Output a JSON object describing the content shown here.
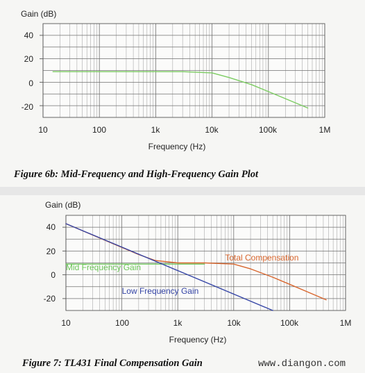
{
  "charts": [
    {
      "caption": "Figure 6b:  Mid-Frequency and High-Frequency Gain Plot",
      "ylabel": "Gain (dB)",
      "xlabel": "Frequency (Hz)",
      "x_tick_labels": [
        "10",
        "100",
        "1k",
        "10k",
        "100k",
        "1M"
      ],
      "y_tick_labels": [
        "40",
        "20",
        "0",
        "-20"
      ]
    },
    {
      "caption": "Figure 7:  TL431 Final Compensation Gain",
      "ylabel": "Gain (dB)",
      "xlabel": "Frequency (Hz)",
      "x_tick_labels": [
        "10",
        "100",
        "1k",
        "10k",
        "100k",
        "1M"
      ],
      "y_tick_labels": [
        "40",
        "20",
        "0",
        "-20"
      ]
    }
  ],
  "watermark": "www.diangon.com",
  "chart_data": [
    {
      "type": "line",
      "title": "Figure 6b:  Mid-Frequency and High-Frequency Gain Plot",
      "xlabel": "Frequency (Hz)",
      "ylabel": "Gain (dB)",
      "xscale": "log",
      "xlim": [
        10,
        1000000
      ],
      "ylim": [
        -30,
        50
      ],
      "grid": true,
      "legend": "none",
      "series": [
        {
          "color": "#7ccc62",
          "x": [
            15,
            100,
            1000,
            3000,
            10000,
            20000,
            50000,
            100000,
            200000,
            500000
          ],
          "y": [
            9,
            9,
            9,
            9,
            8,
            4,
            -2,
            -8,
            -14,
            -22
          ]
        }
      ]
    },
    {
      "type": "line",
      "title": "Figure 7:  TL431 Final Compensation Gain",
      "xlabel": "Frequency (Hz)",
      "ylabel": "Gain (dB)",
      "xscale": "log",
      "xlim": [
        10,
        1000000
      ],
      "ylim": [
        -30,
        50
      ],
      "grid": true,
      "legend": "inline labels",
      "series": [
        {
          "name": "Total Compensation",
          "color": "#d8652c",
          "label_at": [
            7000,
            12
          ],
          "x": [
            10,
            100,
            200,
            400,
            1000,
            3000,
            10000,
            20000,
            50000,
            100000,
            200000,
            450000
          ],
          "y": [
            43,
            23,
            17,
            12,
            10,
            10,
            9,
            5,
            -2,
            -8,
            -14,
            -21
          ]
        },
        {
          "name": "Mid Frequency Gain",
          "color": "#6cc459",
          "label_at": [
            10,
            4
          ],
          "x": [
            10,
            100,
            1000,
            3000
          ],
          "y": [
            9,
            9,
            9,
            9
          ]
        },
        {
          "name": "Low Frequency Gain",
          "color": "#3545a6",
          "label_at": [
            100,
            -16
          ],
          "x": [
            10,
            50000
          ],
          "y": [
            43,
            -30
          ]
        }
      ]
    }
  ]
}
